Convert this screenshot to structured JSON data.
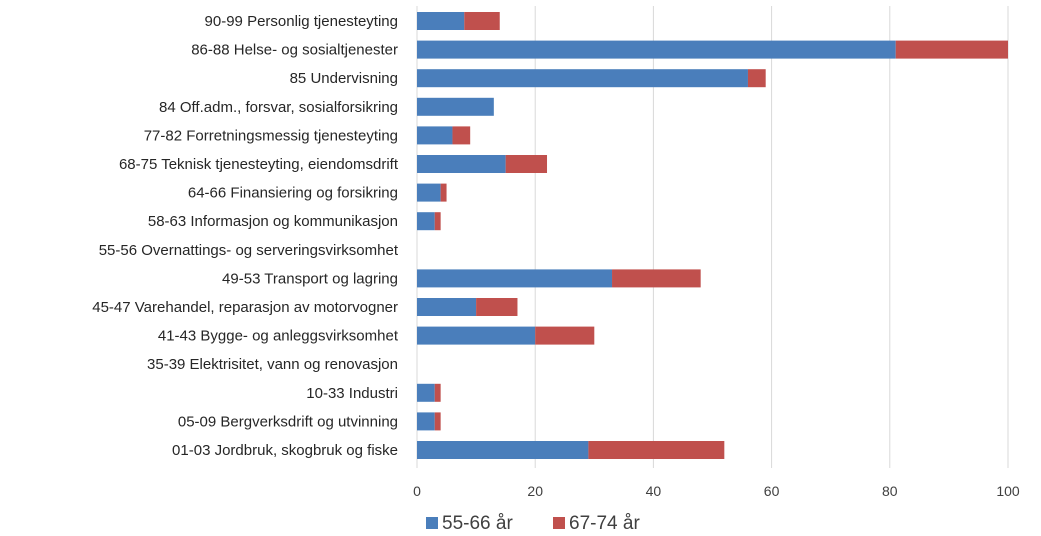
{
  "chart_data": {
    "type": "bar",
    "orientation": "horizontal",
    "stacked": true,
    "categories": [
      "90-99 Personlig tjenesteyting",
      "86-88 Helse- og sosialtjenester",
      "85 Undervisning",
      "84 Off.adm., forsvar, sosialforsikring",
      "77-82 Forretningsmessig tjenesteyting",
      "68-75 Teknisk tjenesteyting, eiendomsdrift",
      "64-66 Finansiering og forsikring",
      "58-63 Informasjon og kommunikasjon",
      "55-56 Overnattings- og serveringsvirksomhet",
      "49-53 Transport og lagring",
      "45-47 Varehandel, reparasjon av motorvogner",
      "41-43 Bygge- og anleggsvirksomhet",
      "35-39 Elektrisitet, vann og renovasjon",
      "10-33 Industri",
      "05-09 Bergverksdrift og utvinning",
      "01-03 Jordbruk, skogbruk og fiske"
    ],
    "series": [
      {
        "name": "55-66 år",
        "color": "#4a7ebb",
        "values": [
          8,
          81,
          56,
          13,
          6,
          15,
          4,
          3,
          0,
          33,
          10,
          20,
          0,
          3,
          3,
          29
        ]
      },
      {
        "name": "67-74 år",
        "color": "#c0504d",
        "values": [
          6,
          19,
          3,
          0,
          3,
          7,
          1,
          1,
          0,
          15,
          7,
          10,
          0,
          1,
          1,
          23
        ]
      }
    ],
    "xlim": [
      0,
      100
    ],
    "xticks": [
      0,
      20,
      40,
      60,
      80,
      100
    ],
    "grid": true,
    "legend_position": "bottom"
  }
}
